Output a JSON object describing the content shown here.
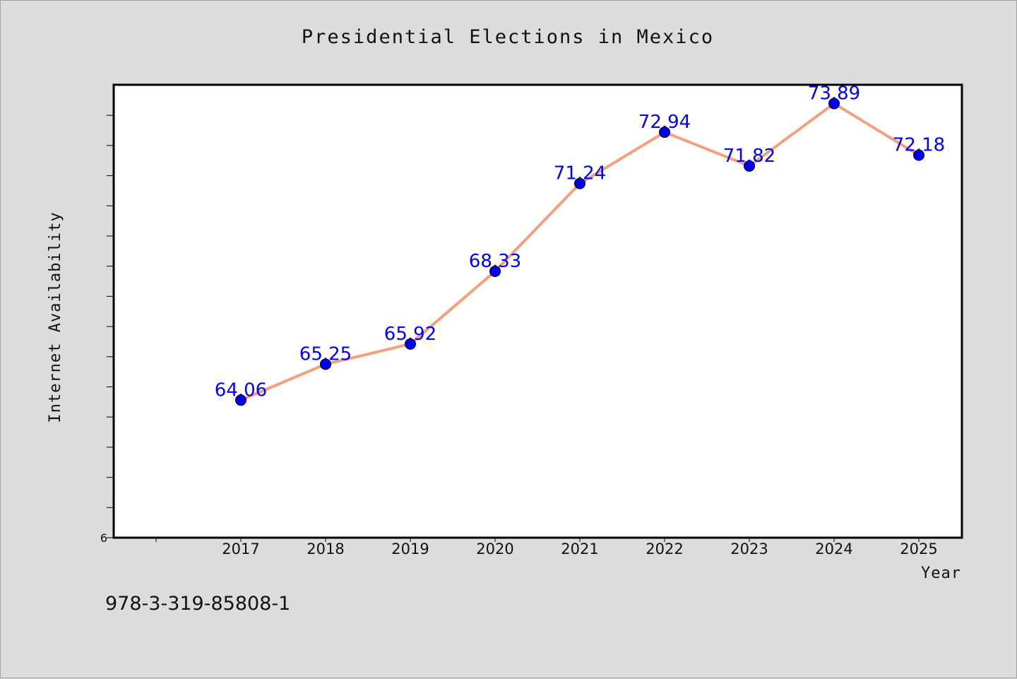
{
  "chart_data": {
    "type": "line",
    "title": "Presidential Elections in Mexico",
    "xlabel": "Year",
    "ylabel": "Internet Availability",
    "categories": [
      "2017",
      "2018",
      "2019",
      "2020",
      "2021",
      "2022",
      "2023",
      "2024",
      "2025"
    ],
    "series": [
      {
        "values": [
          64.06,
          65.25,
          65.92,
          68.33,
          71.24,
          72.94,
          71.82,
          73.89,
          72.18
        ],
        "line_color": "#f4a07c",
        "marker_color": "#0000ee",
        "label_color": "#0000ff"
      }
    ],
    "y_tick_label": "6",
    "ylim": [
      59.5,
      74.5
    ],
    "grid": false,
    "data_labels": true
  },
  "footer": {
    "isbn": "978-3-319-85808-1"
  },
  "colors": {
    "background": "#dcdcdc",
    "plot_background": "#ffffff"
  }
}
